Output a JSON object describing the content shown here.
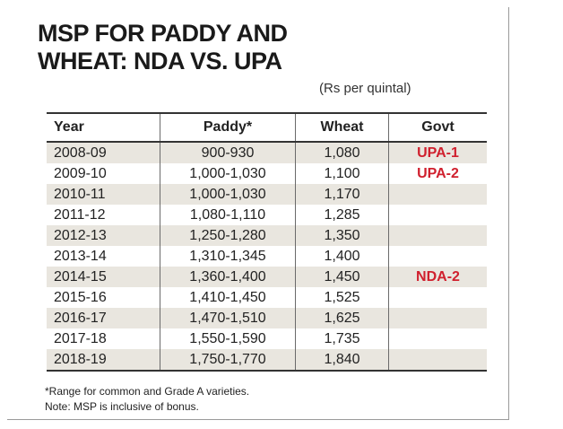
{
  "title": "MSP FOR PADDY AND\nWHEAT: NDA VS. UPA",
  "unit_note": "(Rs per quintal)",
  "chart_data": {
    "type": "table",
    "title": "MSP FOR PADDY AND WHEAT: NDA VS. UPA",
    "unit": "(Rs per quintal)",
    "columns": [
      "Year",
      "Paddy*",
      "Wheat",
      "Govt"
    ],
    "rows": [
      [
        "2008-09",
        "900-930",
        "1,080",
        "UPA-1"
      ],
      [
        "2009-10",
        "1,000-1,030",
        "1,100",
        "UPA-2"
      ],
      [
        "2010-11",
        "1,000-1,030",
        "1,170",
        ""
      ],
      [
        "2011-12",
        "1,080-1,110",
        "1,285",
        ""
      ],
      [
        "2012-13",
        "1,250-1,280",
        "1,350",
        ""
      ],
      [
        "2013-14",
        "1,310-1,345",
        "1,400",
        ""
      ],
      [
        "2014-15",
        "1,360-1,400",
        "1,450",
        "NDA-2"
      ],
      [
        "2015-16",
        "1,410-1,450",
        "1,525",
        ""
      ],
      [
        "2016-17",
        "1,470-1,510",
        "1,625",
        ""
      ],
      [
        "2017-18",
        "1,550-1,590",
        "1,735",
        ""
      ],
      [
        "2018-19",
        "1,750-1,770",
        "1,840",
        ""
      ]
    ],
    "govt_color": "#d0202e",
    "stripe_color": "#e9e6df"
  },
  "footnotes": [
    "*Range for common and Grade A varieties.",
    "Note: MSP is inclusive of bonus."
  ]
}
